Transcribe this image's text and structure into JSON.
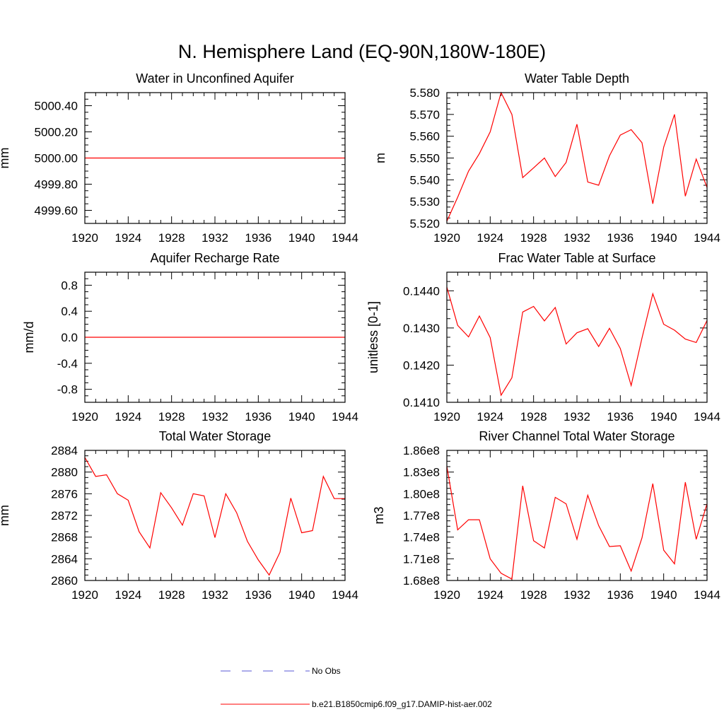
{
  "figure": {
    "title": "N. Hemisphere Land (EQ-90N,180W-180E)"
  },
  "legend": [
    {
      "label": "No Obs",
      "color": "#5a5ad6",
      "style": "dashed"
    },
    {
      "label": "b.e21.B1850cmip6.f09_g17.DAMIP-hist-aer.002",
      "color": "#ff0000",
      "style": "solid"
    }
  ],
  "chart_data": [
    {
      "type": "line",
      "title": "Water in Unconfined Aquifer",
      "xlabel": "",
      "ylabel": "mm",
      "xlim": [
        1920,
        1944
      ],
      "ylim": [
        4999.5,
        5000.5
      ],
      "x_ticks": [
        "1920",
        "1924",
        "1928",
        "1932",
        "1936",
        "1940",
        "1944"
      ],
      "y_ticks": [
        "4999.60",
        "4999.80",
        "5000.00",
        "5000.20",
        "5000.40"
      ],
      "series": [
        {
          "color": "#ff0000",
          "x": [
            1920,
            1944
          ],
          "y": [
            5000.0,
            5000.0
          ]
        }
      ]
    },
    {
      "type": "line",
      "title": "Water Table Depth",
      "xlabel": "",
      "ylabel": "m",
      "xlim": [
        1920,
        1944
      ],
      "ylim": [
        5.52,
        5.58
      ],
      "x_ticks": [
        "1920",
        "1924",
        "1928",
        "1932",
        "1936",
        "1940",
        "1944"
      ],
      "y_ticks": [
        "5.520",
        "5.530",
        "5.540",
        "5.550",
        "5.560",
        "5.570",
        "5.580"
      ],
      "series": [
        {
          "color": "#ff0000",
          "x": [
            1920,
            1921,
            1922,
            1923,
            1924,
            1925,
            1926,
            1927,
            1928,
            1929,
            1930,
            1931,
            1932,
            1933,
            1934,
            1935,
            1936,
            1937,
            1938,
            1939,
            1940,
            1941,
            1942,
            1943,
            1944
          ],
          "y": [
            5.521,
            5.532,
            5.544,
            5.552,
            5.562,
            5.58,
            5.57,
            5.541,
            5.5455,
            5.55,
            5.5415,
            5.548,
            5.5655,
            5.539,
            5.5375,
            5.551,
            5.5605,
            5.563,
            5.557,
            5.529,
            5.555,
            5.57,
            5.5325,
            5.5495,
            5.5365
          ]
        }
      ]
    },
    {
      "type": "line",
      "title": "Aquifer Recharge Rate",
      "xlabel": "",
      "ylabel": "mm/d",
      "xlim": [
        1920,
        1944
      ],
      "ylim": [
        -1.0,
        1.0
      ],
      "x_ticks": [
        "1920",
        "1924",
        "1928",
        "1932",
        "1936",
        "1940",
        "1944"
      ],
      "y_ticks": [
        "-0.8",
        "-0.4",
        "0.0",
        "0.4",
        "0.8"
      ],
      "series": [
        {
          "color": "#ff0000",
          "x": [
            1920,
            1944
          ],
          "y": [
            0.0,
            0.0
          ]
        }
      ]
    },
    {
      "type": "line",
      "title": "Frac Water Table at Surface",
      "xlabel": "",
      "ylabel": "unitless [0-1]",
      "xlim": [
        1920,
        1944
      ],
      "ylim": [
        0.141,
        0.1445
      ],
      "x_ticks": [
        "1920",
        "1924",
        "1928",
        "1932",
        "1936",
        "1940",
        "1944"
      ],
      "y_ticks": [
        "0.1410",
        "0.1420",
        "0.1430",
        "0.1440"
      ],
      "series": [
        {
          "color": "#ff0000",
          "x": [
            1920,
            1921,
            1922,
            1923,
            1924,
            1925,
            1926,
            1927,
            1928,
            1929,
            1930,
            1931,
            1932,
            1933,
            1934,
            1935,
            1936,
            1937,
            1938,
            1939,
            1940,
            1941,
            1942,
            1943,
            1944
          ],
          "y": [
            0.1441,
            0.14307,
            0.14276,
            0.14332,
            0.14274,
            0.14119,
            0.14166,
            0.14343,
            0.14358,
            0.14319,
            0.14355,
            0.14257,
            0.14287,
            0.14298,
            0.1425,
            0.14299,
            0.14245,
            0.14145,
            0.14273,
            0.14392,
            0.1431,
            0.14294,
            0.1427,
            0.14261,
            0.1432
          ]
        }
      ]
    },
    {
      "type": "line",
      "title": "Total Water Storage",
      "xlabel": "",
      "ylabel": "mm",
      "xlim": [
        1920,
        1944
      ],
      "ylim": [
        2860,
        2884
      ],
      "x_ticks": [
        "1920",
        "1924",
        "1928",
        "1932",
        "1936",
        "1940",
        "1944"
      ],
      "y_ticks": [
        "2860",
        "2864",
        "2868",
        "2872",
        "2876",
        "2880",
        "2884"
      ],
      "series": [
        {
          "color": "#ff0000",
          "x": [
            1920,
            1921,
            1922,
            1923,
            1924,
            1925,
            1926,
            1927,
            1928,
            1929,
            1930,
            1931,
            1932,
            1933,
            1934,
            1935,
            1936,
            1937,
            1938,
            1939,
            1940,
            1941,
            1942,
            1943,
            1944
          ],
          "y": [
            2882.7,
            2879.2,
            2879.5,
            2876.0,
            2874.8,
            2869.0,
            2866.0,
            2876.2,
            2873.4,
            2870.2,
            2876.0,
            2875.6,
            2867.9,
            2876.0,
            2872.5,
            2867.2,
            2863.8,
            2861.0,
            2865.2,
            2875.2,
            2868.8,
            2869.2,
            2879.2,
            2875.1,
            2875.1
          ]
        }
      ]
    },
    {
      "type": "line",
      "title": "River Channel Total Water Storage",
      "xlabel": "",
      "ylabel": "m3",
      "xlim": [
        1920,
        1944
      ],
      "ylim": [
        168000000.0,
        186000000.0
      ],
      "x_ticks": [
        "1920",
        "1924",
        "1928",
        "1932",
        "1936",
        "1940",
        "1944"
      ],
      "y_ticks": [
        "1.68e8",
        "1.71e8",
        "1.74e8",
        "1.77e8",
        "1.80e8",
        "1.83e8",
        "1.86e8"
      ],
      "series": [
        {
          "color": "#ff0000",
          "x": [
            1920,
            1921,
            1922,
            1923,
            1924,
            1925,
            1926,
            1927,
            1928,
            1929,
            1930,
            1931,
            1932,
            1933,
            1934,
            1935,
            1936,
            1937,
            1938,
            1939,
            1940,
            1941,
            1942,
            1943,
            1944
          ],
          "y": [
            183800000.0,
            175000000.0,
            176400000.0,
            176400000.0,
            171000000.0,
            169000000.0,
            168200000.0,
            181100000.0,
            173500000.0,
            172500000.0,
            179500000.0,
            178600000.0,
            173700000.0,
            179800000.0,
            175600000.0,
            172700000.0,
            172800000.0,
            169300000.0,
            173900000.0,
            181400000.0,
            172200000.0,
            170300000.0,
            181600000.0,
            173700000.0,
            178600000.0
          ]
        }
      ]
    }
  ]
}
